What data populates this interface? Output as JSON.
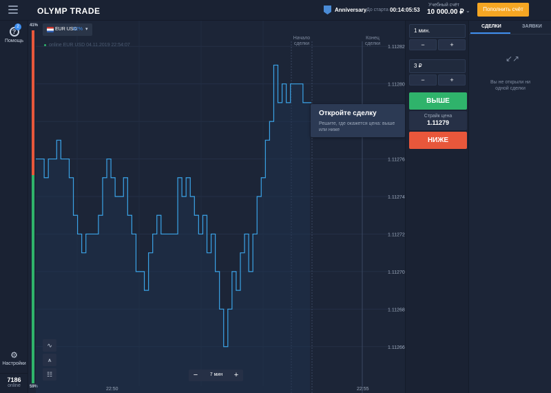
{
  "topbar": {
    "logo": "OLYMP TRADE",
    "anniversary": "Anniversary",
    "start_label": "До старта",
    "start_time": "00:14:05:53",
    "account_type": "Учебный счёт",
    "account_balance": "10 000.00 ₽",
    "deposit_button": "Пополнить счёт",
    "icons": [
      "menu-icon",
      "anniversary-badge-icon",
      "chevron-down-icon"
    ]
  },
  "sidebar": {
    "help_label": "Помощь",
    "help_badge": "2",
    "settings_label": "Настройки",
    "online_count": "7186",
    "online_label": "online",
    "icons": [
      "help-icon",
      "gear-icon"
    ]
  },
  "sentiment": {
    "top_percent": "41%",
    "bottom_percent": "59%",
    "up_fraction": 0.41,
    "colors": {
      "up": "#e8573b",
      "down": "#2fb36b"
    }
  },
  "chart": {
    "asset_name": "EUR USD",
    "asset_percent": "82%",
    "online_info": "online EUR USD 04.11.2019 22:54:07",
    "start_marker": "Начало сделки",
    "end_marker": "Конец сделки",
    "x_labels": [
      "22:50",
      "22:55"
    ],
    "price_labels": [
      "1.11282",
      "1.11280",
      "1.11278",
      "1.11276",
      "1.11274",
      "1.11272",
      "1.11270",
      "1.11268",
      "1.11266"
    ],
    "tooltip_title": "Откройте сделку",
    "tooltip_text": "Решите, где окажется цена: выше или ниже",
    "zoom_label": "7 мин",
    "line_color": "#3ba4e8"
  },
  "chart_data": {
    "type": "line",
    "title": "",
    "xlabel": "",
    "ylabel": "",
    "ylim": [
      1.11265,
      1.11283
    ],
    "series": [
      {
        "values": [
          1.11276,
          1.11276,
          1.11275,
          1.11276,
          1.11276,
          1.11277,
          1.11276,
          1.11276,
          1.11275,
          1.11273,
          1.11272,
          1.11271,
          1.11272,
          1.11272,
          1.11272,
          1.11273,
          1.11275,
          1.11276,
          1.11275,
          1.11274,
          1.11274,
          1.11275,
          1.11273,
          1.11272,
          1.1127,
          1.1127,
          1.11269,
          1.11271,
          1.11272,
          1.11273,
          1.11272,
          1.11272,
          1.11272,
          1.11272,
          1.11275,
          1.11274,
          1.11275,
          1.11274,
          1.11273,
          1.11272,
          1.11273,
          1.11271,
          1.11272,
          1.1127,
          1.11268,
          1.11266,
          1.11268,
          1.1127,
          1.11269,
          1.11271,
          1.11272,
          1.1127,
          1.11272,
          1.11274,
          1.11275,
          1.11277,
          1.11278,
          1.11281,
          1.11279,
          1.1128,
          1.11279,
          1.1128,
          1.1128,
          1.1128,
          1.11279,
          1.11279,
          1.11279
        ]
      }
    ],
    "grid": true
  },
  "tools": {
    "icons": [
      "line-chart-icon",
      "drawing-tool-icon",
      "grid-icon"
    ]
  },
  "trade": {
    "duration": "1 мин.",
    "amount": "3 ₽",
    "minus": "−",
    "plus": "+",
    "up_button": "ВЫШЕ",
    "strike_label": "Страйк цена",
    "strike_value": "1.11279",
    "down_button": "НИЖЕ"
  },
  "deals": {
    "tab_deals": "СДЕЛКИ",
    "tab_orders": "ЗАЯВКИ",
    "empty_text": "Вы не открыли ни одной сделки",
    "icons": [
      "collapse-arrows-icon"
    ]
  }
}
